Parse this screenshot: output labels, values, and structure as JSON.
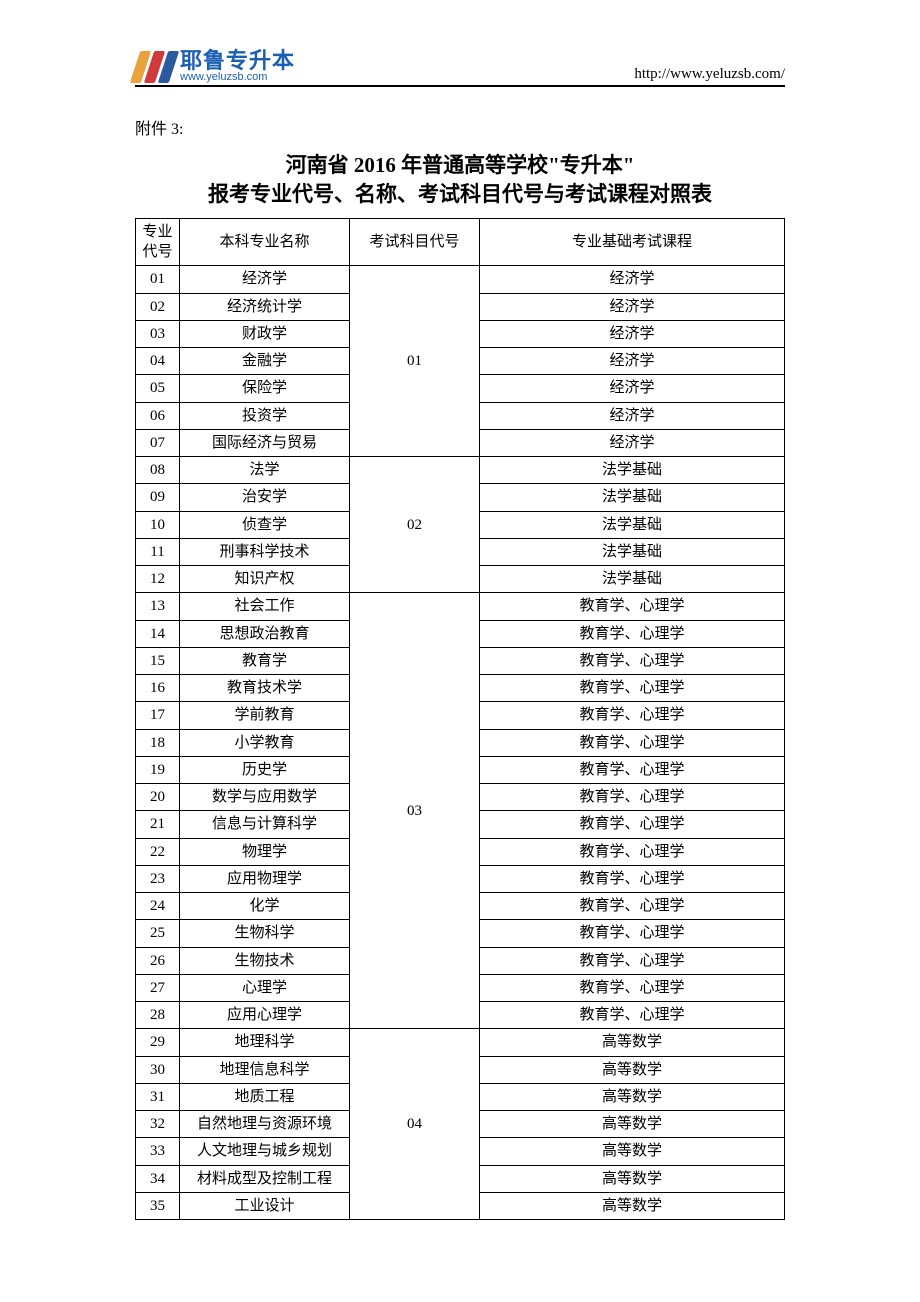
{
  "header": {
    "logo_text_cn": "耶鲁专升本",
    "logo_text_url": "www.yeluzsb.com",
    "logo_colors": {
      "bar1": "#e8a33d",
      "bar2": "#d03a3a",
      "bar3": "#2c5aa0"
    },
    "url_text": "http://www.yeluzsb.com/"
  },
  "attachment_label": "附件 3:",
  "title": {
    "line1": "河南省 2016 年普通高等学校\"专升本\"",
    "line2": "报考专业代号、名称、考试科目代号与考试课程对照表"
  },
  "table": {
    "columns": {
      "c1": "专业代号",
      "c2": "本科专业名称",
      "c3": "考试科目代号",
      "c4": "专业基础考试课程"
    },
    "widths": {
      "col1": 44,
      "col2": 170,
      "col3": 130
    },
    "font_size": 15,
    "border_color": "#000000",
    "background_color": "#ffffff",
    "groups": [
      {
        "subject_code": "01",
        "rows": [
          {
            "code": "01",
            "major": "经济学",
            "course": "经济学"
          },
          {
            "code": "02",
            "major": "经济统计学",
            "course": "经济学"
          },
          {
            "code": "03",
            "major": "财政学",
            "course": "经济学"
          },
          {
            "code": "04",
            "major": "金融学",
            "course": "经济学"
          },
          {
            "code": "05",
            "major": "保险学",
            "course": "经济学"
          },
          {
            "code": "06",
            "major": "投资学",
            "course": "经济学"
          },
          {
            "code": "07",
            "major": "国际经济与贸易",
            "course": "经济学"
          }
        ]
      },
      {
        "subject_code": "02",
        "rows": [
          {
            "code": "08",
            "major": "法学",
            "course": "法学基础"
          },
          {
            "code": "09",
            "major": "治安学",
            "course": "法学基础"
          },
          {
            "code": "10",
            "major": "侦查学",
            "course": "法学基础"
          },
          {
            "code": "11",
            "major": "刑事科学技术",
            "course": "法学基础"
          },
          {
            "code": "12",
            "major": "知识产权",
            "course": "法学基础"
          }
        ]
      },
      {
        "subject_code": "03",
        "rows": [
          {
            "code": "13",
            "major": "社会工作",
            "course": "教育学、心理学"
          },
          {
            "code": "14",
            "major": "思想政治教育",
            "course": "教育学、心理学"
          },
          {
            "code": "15",
            "major": "教育学",
            "course": "教育学、心理学"
          },
          {
            "code": "16",
            "major": "教育技术学",
            "course": "教育学、心理学"
          },
          {
            "code": "17",
            "major": "学前教育",
            "course": "教育学、心理学"
          },
          {
            "code": "18",
            "major": "小学教育",
            "course": "教育学、心理学"
          },
          {
            "code": "19",
            "major": "历史学",
            "course": "教育学、心理学"
          },
          {
            "code": "20",
            "major": "数学与应用数学",
            "course": "教育学、心理学"
          },
          {
            "code": "21",
            "major": "信息与计算科学",
            "course": "教育学、心理学"
          },
          {
            "code": "22",
            "major": "物理学",
            "course": "教育学、心理学"
          },
          {
            "code": "23",
            "major": "应用物理学",
            "course": "教育学、心理学"
          },
          {
            "code": "24",
            "major": "化学",
            "course": "教育学、心理学"
          },
          {
            "code": "25",
            "major": "生物科学",
            "course": "教育学、心理学"
          },
          {
            "code": "26",
            "major": "生物技术",
            "course": "教育学、心理学"
          },
          {
            "code": "27",
            "major": "心理学",
            "course": "教育学、心理学"
          },
          {
            "code": "28",
            "major": "应用心理学",
            "course": "教育学、心理学"
          }
        ]
      },
      {
        "subject_code": "04",
        "rows": [
          {
            "code": "29",
            "major": "地理科学",
            "course": "高等数学"
          },
          {
            "code": "30",
            "major": "地理信息科学",
            "course": "高等数学"
          },
          {
            "code": "31",
            "major": "地质工程",
            "course": "高等数学"
          },
          {
            "code": "32",
            "major": "自然地理与资源环境",
            "course": "高等数学"
          },
          {
            "code": "33",
            "major": "人文地理与城乡规划",
            "course": "高等数学"
          },
          {
            "code": "34",
            "major": "材料成型及控制工程",
            "course": "高等数学"
          },
          {
            "code": "35",
            "major": "工业设计",
            "course": "高等数学"
          }
        ]
      }
    ]
  }
}
